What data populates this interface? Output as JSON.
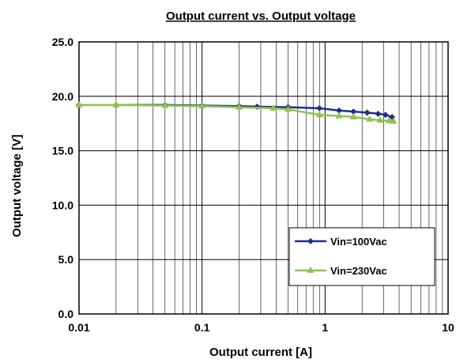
{
  "chart_data": {
    "type": "line",
    "title": "Output current vs. Output voltage",
    "xlabel": "Output current [A]",
    "ylabel": "Output voltage [V]",
    "xscale": "log",
    "xlim": [
      0.01,
      10
    ],
    "ylim": [
      0,
      25
    ],
    "xticks": [
      "0.01",
      "0.1",
      "1",
      "10"
    ],
    "yticks": [
      "0.0",
      "5.0",
      "10.0",
      "15.0",
      "20.0",
      "25.0"
    ],
    "grid": true,
    "legend_position": "bottom-right",
    "series": [
      {
        "name": "Vin=100Vac",
        "color": "#1f2d8a",
        "marker": "diamond",
        "x": [
          0.01,
          0.02,
          0.05,
          0.1,
          0.2,
          0.28,
          0.5,
          0.9,
          1.3,
          1.7,
          2.2,
          2.7,
          3.1,
          3.5
        ],
        "y": [
          19.2,
          19.2,
          19.2,
          19.15,
          19.1,
          19.05,
          19.0,
          18.9,
          18.7,
          18.6,
          18.5,
          18.4,
          18.3,
          18.1
        ]
      },
      {
        "name": "Vin=230Vac",
        "color": "#8dc54b",
        "marker": "triangle",
        "x": [
          0.01,
          0.02,
          0.05,
          0.1,
          0.2,
          0.38,
          0.5,
          0.9,
          1.3,
          1.7,
          2.3,
          2.8,
          3.3,
          3.6
        ],
        "y": [
          19.2,
          19.2,
          19.15,
          19.1,
          19.0,
          18.9,
          18.8,
          18.3,
          18.2,
          18.1,
          17.9,
          17.8,
          17.75,
          17.7
        ]
      }
    ]
  }
}
